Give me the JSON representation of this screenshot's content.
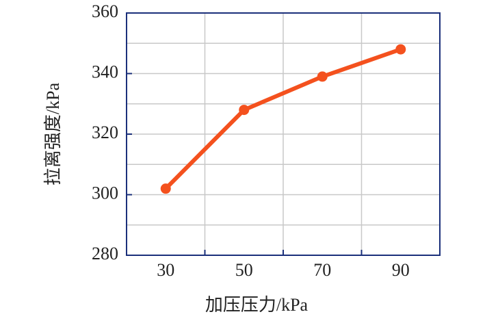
{
  "chart_data": {
    "type": "line",
    "x_label": "加压压力/kPa",
    "y_label": "拉离强度/kPa",
    "categories": [
      "30",
      "50",
      "70",
      "90"
    ],
    "series": [
      {
        "name": "拉离强度",
        "color": "#f4511e",
        "values": [
          302,
          328,
          339,
          348
        ]
      }
    ],
    "ylim": [
      280,
      360
    ],
    "yticks": [
      280,
      300,
      320,
      340,
      360
    ],
    "grid": true
  }
}
